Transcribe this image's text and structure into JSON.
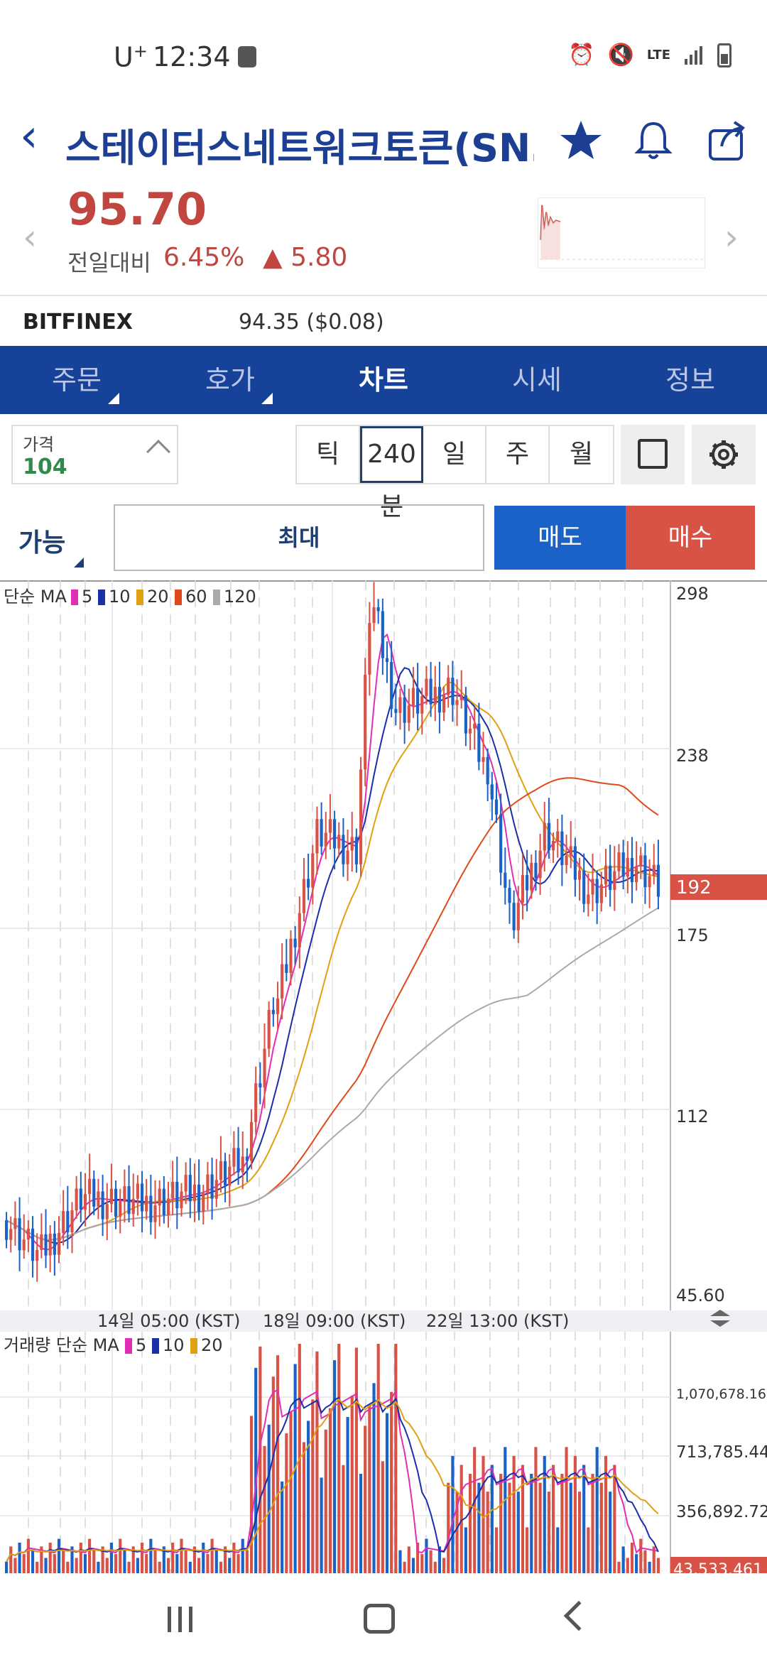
{
  "status": {
    "carrier": "U",
    "carrier_sup": "+",
    "time": "12:34",
    "lte": "LTE"
  },
  "header": {
    "title": "스테이터스네트워크토큰(SN…",
    "icons": [
      "back-arrow-icon",
      "star-icon",
      "bell-icon",
      "share-icon"
    ]
  },
  "quote": {
    "price": "95.70",
    "diff_label": "전일대비",
    "diff_pct": "6.45%",
    "diff_amt": "▲ 5.80"
  },
  "exchange": {
    "name": "BITFINEX",
    "value": "94.35 ($0.08)"
  },
  "tabs": [
    {
      "label": "주문",
      "has_menu": true
    },
    {
      "label": "호가",
      "has_menu": true
    },
    {
      "label": "차트",
      "active": true
    },
    {
      "label": "시세"
    },
    {
      "label": "정보"
    }
  ],
  "controls": {
    "price_label": "가격",
    "price_value": "104",
    "periods": [
      "틱",
      "240분",
      "일",
      "주",
      "월"
    ],
    "selected_period": "240분"
  },
  "order": {
    "avail_label": "가능",
    "max_label": "최대",
    "sell_label": "매도",
    "buy_label": "매수"
  },
  "chart_data": [
    {
      "type": "candlestick",
      "legend_title": "단순 MA",
      "legend": [
        {
          "name": "5",
          "color": "#e02fb4"
        },
        {
          "name": "10",
          "color": "#1a2fa8"
        },
        {
          "name": "20",
          "color": "#e0a010"
        },
        {
          "name": "60",
          "color": "#e04a1a"
        },
        {
          "name": "120",
          "color": "#aaaaaa"
        }
      ],
      "y_ticks": [
        "298",
        "238",
        "175",
        "112",
        "45.60"
      ],
      "ylim": [
        45.6,
        298
      ],
      "current_value": "192",
      "x_ticks": [
        "14일 05:00 (KST)",
        "18일 09:00 (KST)",
        "22일 13:00 (KST)"
      ],
      "colors": {
        "up": "#d95246",
        "down": "#1a62c7"
      }
    },
    {
      "type": "bar",
      "legend_title": "거래량 단순 MA",
      "legend": [
        {
          "name": "5",
          "color": "#e02fb4"
        },
        {
          "name": "10",
          "color": "#1a2fa8"
        },
        {
          "name": "20",
          "color": "#e0a010"
        }
      ],
      "y_ticks": [
        "1,070,678.165",
        "713,785.443",
        "356,892.722"
      ],
      "current_value": "43,533.461"
    }
  ]
}
